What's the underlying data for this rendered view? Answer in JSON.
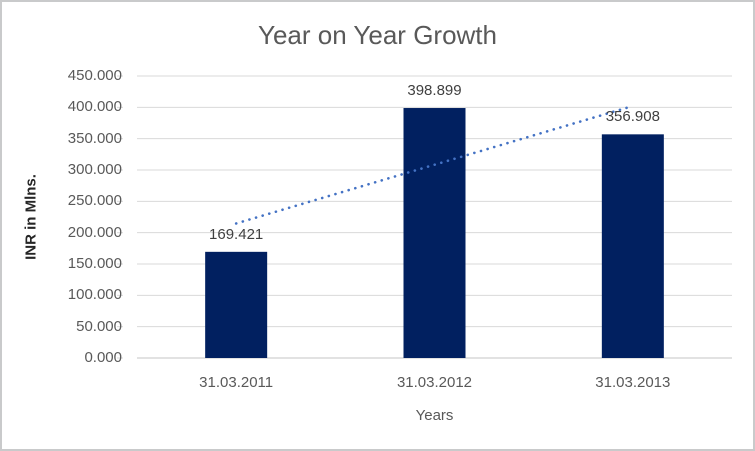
{
  "chart_data": {
    "type": "bar",
    "title": "Year on Year Growth",
    "xlabel": "Years",
    "ylabel": "INR in Mlns.",
    "categories": [
      "31.03.2011",
      "31.03.2012",
      "31.03.2013"
    ],
    "values": [
      169.421,
      398.899,
      356.908
    ],
    "data_labels": [
      "169.421",
      "398.899",
      "356.908"
    ],
    "y_tick_labels": [
      "0.000",
      "50.000",
      "100.000",
      "150.000",
      "200.000",
      "250.000",
      "300.000",
      "350.000",
      "400.000",
      "450.000"
    ],
    "ylim": [
      0,
      450
    ],
    "grid": true,
    "legend": "none",
    "trendline": {
      "type": "linear",
      "style": "dotted"
    },
    "colors": {
      "bar": "#012060",
      "trendline": "#4472c4",
      "gridline": "#d9d9d9",
      "axis_line": "#c6c6c6",
      "tick_text": "#595959",
      "title_text": "#595959",
      "data_label_text": "#404040",
      "axis_title_text": "#595959",
      "y_axis_title_text": "#262626",
      "chart_border": "#c9cacb"
    }
  }
}
